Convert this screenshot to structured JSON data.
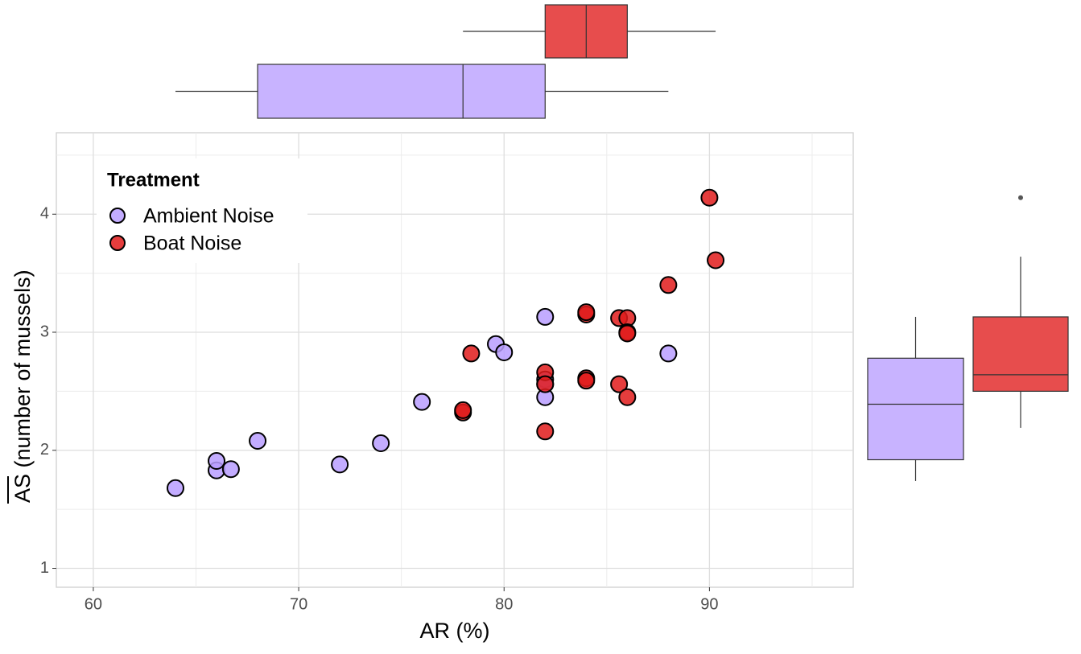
{
  "chart_data": {
    "type": "scatter",
    "x_label": "AR (%)",
    "y_label": "AS (number of mussels)",
    "legend_title": "Treatment",
    "legend_position": "top-left",
    "grid": true,
    "xlim": [
      58.2,
      97
    ],
    "xticks": [
      60,
      70,
      80,
      90
    ],
    "minor_xticks": [
      65,
      75,
      85,
      95
    ],
    "ylim": [
      0.84,
      4.69
    ],
    "yticks": [
      1,
      2,
      3,
      4
    ],
    "minor_yticks": [
      1.5,
      2.5,
      3.5,
      4.5
    ],
    "series": [
      {
        "name": "Ambient Noise",
        "color": "#b99eff",
        "x": [
          64,
          66,
          66,
          66.7,
          68,
          72,
          74,
          76,
          79.6,
          80,
          82,
          82,
          82,
          82,
          88
        ],
        "values": [
          1.68,
          1.83,
          1.91,
          1.84,
          2.08,
          1.88,
          2.06,
          2.41,
          2.9,
          2.83,
          3.13,
          2.6,
          2.56,
          2.45,
          2.82
        ],
        "x_box": [
          64,
          68,
          78,
          82,
          88
        ],
        "y_box": [
          1.74,
          1.92,
          2.39,
          2.78,
          3.13
        ],
        "y_outliers": []
      },
      {
        "name": "Boat Noise",
        "color": "#e01b1b",
        "x": [
          78,
          78,
          78.4,
          82,
          82,
          82,
          84,
          84,
          84,
          84,
          85.6,
          86,
          86,
          86,
          85.6,
          86,
          88,
          90,
          90.3
        ],
        "values": [
          2.32,
          2.34,
          2.82,
          2.66,
          2.56,
          2.16,
          3.15,
          3.17,
          2.61,
          2.59,
          3.12,
          3.12,
          3.0,
          2.99,
          2.56,
          2.45,
          3.4,
          4.14,
          3.61
        ],
        "x_box": [
          78,
          82,
          84,
          86,
          90.3
        ],
        "y_box": [
          2.19,
          2.5,
          2.64,
          3.13,
          3.64
        ],
        "y_outliers": [
          4.14
        ]
      }
    ]
  }
}
